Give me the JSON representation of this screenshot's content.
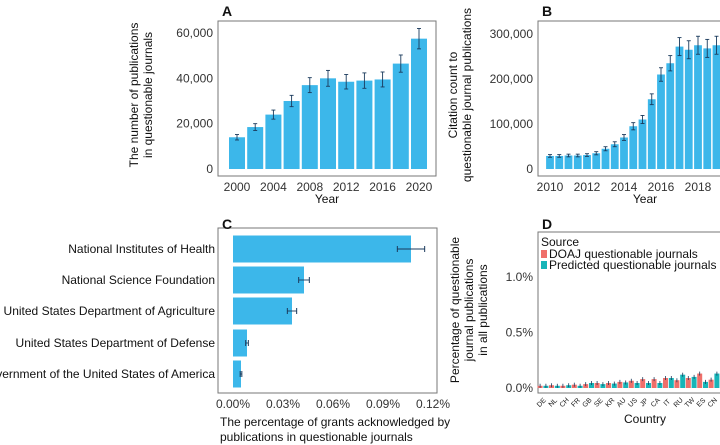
{
  "colors": {
    "bar": "#3cb7ea",
    "doaj": "#ef6f6a",
    "predicted": "#17b5b8",
    "error": "#1a3a5c"
  },
  "chart_data": [
    {
      "panel": "A",
      "type": "bar",
      "xlabel": "Year",
      "ylabel": "The number of publications in questionable journals",
      "ylabel_lines": [
        "The number of publications",
        "in questionable journals"
      ],
      "categories": [
        2000,
        2002,
        2004,
        2006,
        2008,
        2010,
        2012,
        2014,
        2016,
        2018,
        2020
      ],
      "values": [
        14000,
        18500,
        24000,
        30000,
        37000,
        40000,
        38500,
        39000,
        39500,
        46500,
        57500
      ],
      "errors": [
        1200,
        1500,
        2000,
        2500,
        3300,
        3500,
        3200,
        3400,
        3300,
        3800,
        4500
      ],
      "yticks": [
        "0",
        "20,000",
        "40,000",
        "60,000"
      ],
      "ytick_values": [
        0,
        20000,
        40000,
        60000
      ],
      "xticks": [
        "2000",
        "2004",
        "2008",
        "2012",
        "2016",
        "2020"
      ],
      "ylim": [
        0,
        62000
      ],
      "grid": false
    },
    {
      "panel": "B",
      "type": "bar",
      "xlabel": "Year",
      "ylabel": "Citation count to questionable journal publications",
      "ylabel_lines": [
        "Citation count to",
        "questionable journal publications"
      ],
      "categories": [
        2010,
        2010.5,
        2011,
        2011.5,
        2012,
        2012.5,
        2013,
        2013.5,
        2014,
        2014.5,
        2015,
        2015.5,
        2016,
        2016.5,
        2017,
        2017.5,
        2018,
        2018.5,
        2019
      ],
      "values": [
        29000,
        29000,
        30000,
        30000,
        31000,
        35000,
        45000,
        55000,
        70000,
        95000,
        110000,
        155000,
        210000,
        235000,
        272000,
        265000,
        275000,
        268000,
        275000
      ],
      "errors": [
        3000,
        3000,
        3000,
        3000,
        3000,
        3500,
        4500,
        5500,
        6500,
        8000,
        9000,
        12000,
        15000,
        17000,
        20000,
        20000,
        20000,
        20000,
        20000
      ],
      "yticks": [
        "0",
        "100,000",
        "200,000",
        "300,000"
      ],
      "ytick_values": [
        0,
        100000,
        200000,
        300000
      ],
      "xticks": [
        "2010",
        "2012",
        "2014",
        "2016",
        "2018"
      ],
      "ylim": [
        0,
        320000
      ],
      "grid": false
    },
    {
      "panel": "C",
      "type": "bar",
      "orientation": "horizontal",
      "xlabel": "The percentage of grants acknowledged by publications in questionable journals",
      "xlabel_lines": [
        "The percentage of grants acknowledged by",
        "publications in questionable journals"
      ],
      "categories": [
        "National Institutes of Health",
        "National Science Foundation",
        "United States Department of Agriculture",
        "United States Department of Defense",
        "Government of the United States of America"
      ],
      "values": [
        0.1068,
        0.0426,
        0.0354,
        0.0084,
        0.0048
      ],
      "errors": [
        0.0082,
        0.0032,
        0.0028,
        0.0008,
        0.0005
      ],
      "xticks": [
        "0.00%",
        "0.03%",
        "0.06%",
        "0.09%",
        "0.12%"
      ],
      "xtick_values": [
        0,
        0.03,
        0.06,
        0.09,
        0.12
      ],
      "xlim": [
        0,
        0.12
      ]
    },
    {
      "panel": "D",
      "type": "bar",
      "xlabel": "Country",
      "ylabel": "Percentage of questionable journal publications in all publications",
      "ylabel_lines": [
        "Percentage of questionable",
        "journal publications",
        "in all publications"
      ],
      "legend_title": "Source",
      "legend_position": "top-left",
      "categories": [
        "DE",
        "NL",
        "CH",
        "FR",
        "GB",
        "SE",
        "KR",
        "AU",
        "US",
        "JP",
        "CA",
        "IT",
        "RU",
        "TW",
        "ES",
        "CN"
      ],
      "series": [
        {
          "name": "DOAJ questionable journals",
          "values": [
            0.02,
            0.025,
            0.02,
            0.03,
            0.035,
            0.045,
            0.045,
            0.055,
            0.065,
            0.08,
            0.08,
            0.09,
            0.07,
            0.09,
            0.13,
            0.075
          ]
        },
        {
          "name": "Predicted questionable journals",
          "values": [
            0.02,
            0.02,
            0.025,
            0.02,
            0.045,
            0.035,
            0.04,
            0.05,
            0.045,
            0.045,
            0.045,
            0.09,
            0.12,
            0.1,
            0.055,
            0.13
          ]
        }
      ],
      "yticks": [
        "0.0%",
        "0.5%",
        "1.0%"
      ],
      "ytick_values": [
        0,
        0.5,
        1.0
      ],
      "ylim": [
        -0.02,
        1.45
      ]
    }
  ]
}
